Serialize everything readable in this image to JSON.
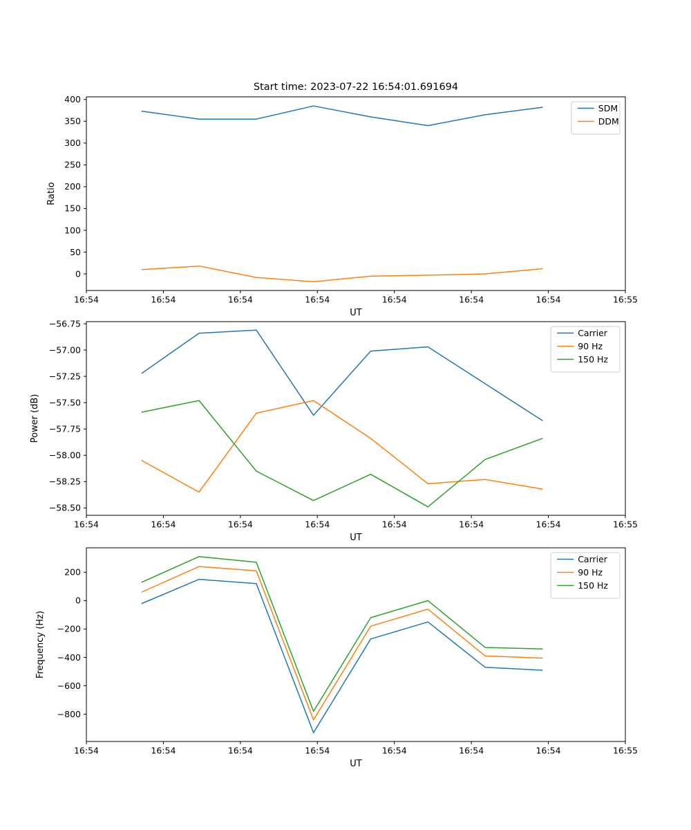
{
  "figure": {
    "title": "Start time: 2023-07-22 16:54:01.691694"
  },
  "colors": {
    "blue": "#1f77b4",
    "orange": "#ff7f0e",
    "green": "#2ca02c",
    "legend_border": "#cccccc",
    "axes": "#000000"
  },
  "chart_data": [
    {
      "type": "line",
      "title": "Start time: 2023-07-22 16:54:01.691694",
      "xlabel": "UT",
      "ylabel": "Ratio",
      "grid": false,
      "legend_position": "upper right",
      "xlim": [
        -0.97,
        8.45
      ],
      "ylim": [
        -38,
        406
      ],
      "x": [
        0,
        1,
        2,
        3,
        4,
        5,
        6,
        7
      ],
      "xticklabels": [
        "16:54",
        "16:54",
        "16:54",
        "16:54",
        "16:54",
        "16:54",
        "16:54",
        "16:55"
      ],
      "yticks": [
        0,
        50,
        100,
        150,
        200,
        250,
        300,
        350,
        400
      ],
      "ytick_labels": [
        "0",
        "50",
        "100",
        "150",
        "200",
        "250",
        "300",
        "350",
        "400"
      ],
      "series": [
        {
          "name": "SDM",
          "color": "#1f77b4",
          "values": [
            373,
            355,
            355,
            385,
            360,
            340,
            365,
            382
          ]
        },
        {
          "name": "DDM",
          "color": "#ff7f0e",
          "values": [
            10,
            18,
            -8,
            -18,
            -5,
            -3,
            0,
            12
          ]
        }
      ]
    },
    {
      "type": "line",
      "xlabel": "UT",
      "ylabel": "Power (dB)",
      "grid": false,
      "legend_position": "upper right",
      "xlim": [
        -0.97,
        8.45
      ],
      "ylim": [
        -58.57,
        -56.73
      ],
      "x": [
        0,
        1,
        2,
        3,
        4,
        5,
        6,
        7
      ],
      "xticklabels": [
        "16:54",
        "16:54",
        "16:54",
        "16:54",
        "16:54",
        "16:54",
        "16:54",
        "16:55"
      ],
      "yticks": [
        -58.5,
        -58.25,
        -58.0,
        -57.75,
        -57.5,
        -57.25,
        -57.0,
        -56.75
      ],
      "ytick_labels": [
        "−58.50",
        "−58.25",
        "−58.00",
        "−57.75",
        "−57.50",
        "−57.25",
        "−57.00",
        "−56.75"
      ],
      "series": [
        {
          "name": "Carrier",
          "color": "#1f77b4",
          "values": [
            -57.22,
            -56.84,
            -56.81,
            -57.62,
            -57.01,
            -56.97,
            -57.32,
            -57.67
          ]
        },
        {
          "name": "90 Hz",
          "color": "#ff7f0e",
          "values": [
            -58.05,
            -58.35,
            -57.6,
            -57.48,
            -57.84,
            -58.27,
            -58.23,
            -58.32
          ]
        },
        {
          "name": "150 Hz",
          "color": "#2ca02c",
          "values": [
            -57.59,
            -57.48,
            -58.15,
            -58.43,
            -58.18,
            -58.49,
            -58.04,
            -57.84
          ]
        }
      ]
    },
    {
      "type": "line",
      "xlabel": "UT",
      "ylabel": "Frequency (Hz)",
      "grid": false,
      "legend_position": "upper right",
      "xlim": [
        -0.97,
        8.45
      ],
      "ylim": [
        -992,
        372
      ],
      "x": [
        0,
        1,
        2,
        3,
        4,
        5,
        6,
        7
      ],
      "xticklabels": [
        "16:54",
        "16:54",
        "16:54",
        "16:54",
        "16:54",
        "16:54",
        "16:54",
        "16:55"
      ],
      "yticks": [
        -800,
        -600,
        -400,
        -200,
        0,
        200
      ],
      "ytick_labels": [
        "−800",
        "−600",
        "−400",
        "−200",
        "0",
        "200"
      ],
      "series": [
        {
          "name": "Carrier",
          "color": "#1f77b4",
          "values": [
            -20,
            150,
            120,
            -930,
            -270,
            -150,
            -470,
            -490
          ]
        },
        {
          "name": "90 Hz",
          "color": "#ff7f0e",
          "values": [
            60,
            240,
            210,
            -840,
            -180,
            -60,
            -390,
            -405
          ]
        },
        {
          "name": "150 Hz",
          "color": "#2ca02c",
          "values": [
            130,
            310,
            270,
            -780,
            -120,
            0,
            -330,
            -340
          ]
        }
      ]
    }
  ]
}
